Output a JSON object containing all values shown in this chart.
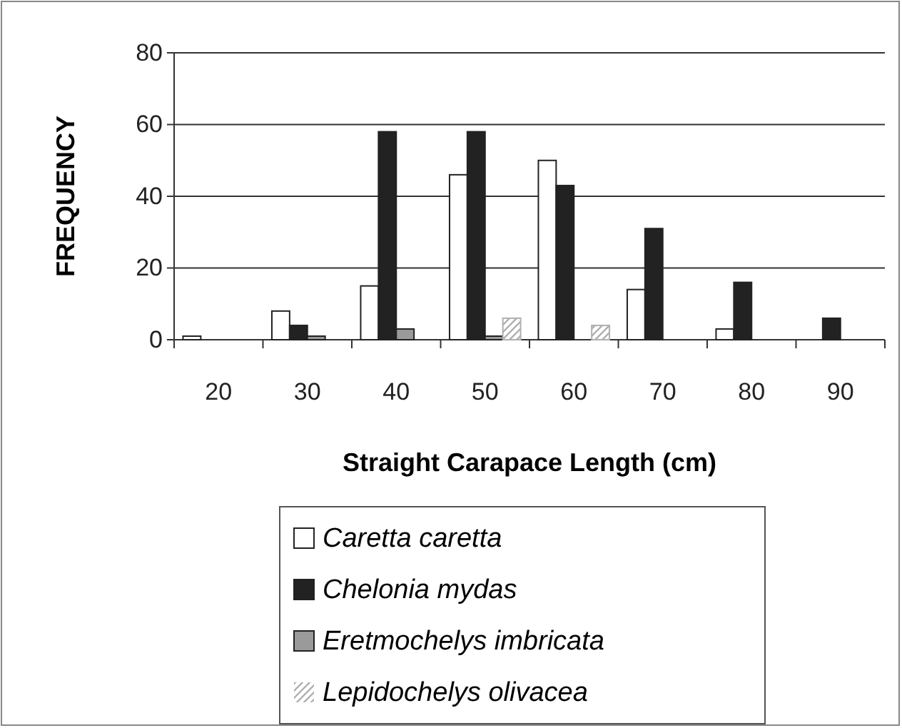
{
  "chart_data": {
    "type": "bar",
    "xlabel": "Straight Carapace Length (cm)",
    "ylabel": "FREQUENCY",
    "categories": [
      "20",
      "30",
      "40",
      "50",
      "60",
      "70",
      "80",
      "90"
    ],
    "series": [
      {
        "name": "Caretta caretta",
        "color": "#ffffff",
        "values": [
          1,
          8,
          15,
          46,
          50,
          14,
          3,
          null
        ]
      },
      {
        "name": "Chelonia mydas",
        "color": "#222222",
        "values": [
          null,
          4,
          58,
          58,
          43,
          31,
          16,
          6
        ]
      },
      {
        "name": "Eretmochelys imbricata",
        "color": "#9a9a9a",
        "values": [
          null,
          1,
          3,
          1,
          null,
          null,
          null,
          null
        ]
      },
      {
        "name": "Lepidochelys olivacea",
        "color": "#b0b0b0",
        "values": [
          null,
          null,
          null,
          6,
          4,
          null,
          null,
          null
        ]
      }
    ],
    "ylim": [
      0,
      80
    ],
    "yticks": [
      0,
      20,
      40,
      60,
      80
    ],
    "grid": "y",
    "legend": "bottom"
  }
}
